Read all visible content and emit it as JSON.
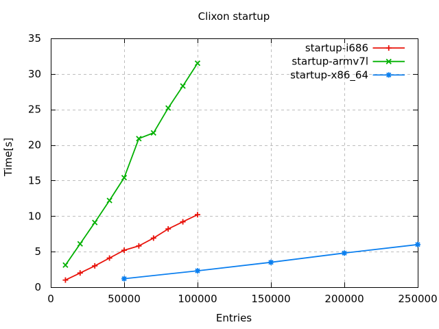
{
  "chart_data": {
    "type": "line",
    "title": "Clixon startup",
    "xlabel": "Entries",
    "ylabel": "Time[s]",
    "xlim": [
      0,
      250000
    ],
    "ylim": [
      0,
      35
    ],
    "xticks": [
      0,
      50000,
      100000,
      150000,
      200000,
      250000
    ],
    "yticks": [
      0,
      5,
      10,
      15,
      20,
      25,
      30,
      35
    ],
    "grid": true,
    "grid_color": "#bdbdbd",
    "border_color": "#000000",
    "legend_position": "top-right-inside",
    "series": [
      {
        "name": "startup-i686",
        "color": "#e8120a",
        "marker": "plus",
        "x": [
          10000,
          20000,
          30000,
          40000,
          50000,
          60000,
          70000,
          80000,
          90000,
          100000
        ],
        "y": [
          1.0,
          2.0,
          3.0,
          4.1,
          5.2,
          5.8,
          6.9,
          8.2,
          9.2,
          10.2
        ]
      },
      {
        "name": "startup-armv7l",
        "color": "#00b000",
        "marker": "cross",
        "x": [
          10000,
          20000,
          30000,
          40000,
          50000,
          60000,
          70000,
          80000,
          90000,
          100000
        ],
        "y": [
          3.1,
          6.1,
          9.1,
          12.2,
          15.4,
          20.9,
          21.7,
          25.2,
          28.3,
          31.5
        ]
      },
      {
        "name": "startup-x86_64",
        "color": "#0b7fef",
        "marker": "asterisk",
        "x": [
          50000,
          100000,
          150000,
          200000,
          250000
        ],
        "y": [
          1.2,
          2.3,
          3.5,
          4.8,
          6.0
        ]
      }
    ]
  }
}
